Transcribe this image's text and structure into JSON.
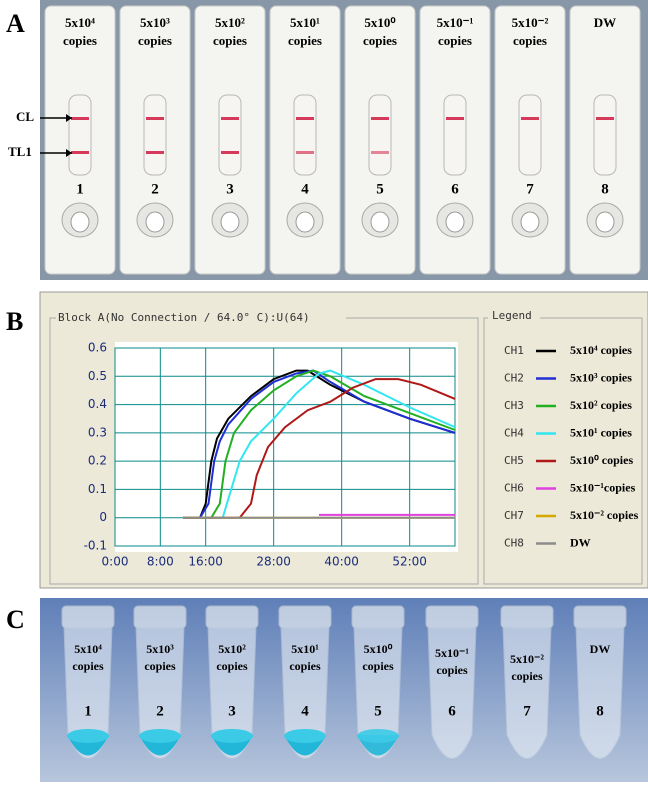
{
  "panel_a": {
    "label": "A",
    "markers": [
      "CL",
      "TL1"
    ],
    "strips": [
      {
        "concentration": "5x10⁴",
        "unit": "copies",
        "number": "1"
      },
      {
        "concentration": "5x10³",
        "unit": "copies",
        "number": "2"
      },
      {
        "concentration": "5x10²",
        "unit": "copies",
        "number": "3"
      },
      {
        "concentration": "5x10¹",
        "unit": "copies",
        "number": "4"
      },
      {
        "concentration": "5x10⁰",
        "unit": "copies",
        "number": "5"
      },
      {
        "concentration": "5x10⁻¹",
        "unit": "copies",
        "number": "6"
      },
      {
        "concentration": "5x10⁻²",
        "unit": "copies",
        "number": "7"
      },
      {
        "concentration": "DW",
        "number": "8"
      }
    ]
  },
  "chart_data": {
    "type": "line",
    "panel_label": "B",
    "title": "Block A(No Connection / 64.0° C):U(64)",
    "legend_title": "Legend",
    "xlim": [
      0,
      60
    ],
    "ylim": [
      -0.1,
      0.6
    ],
    "grid": true,
    "xticks": [
      {
        "value": 0,
        "label": "0:00"
      },
      {
        "value": 8,
        "label": "8:00"
      },
      {
        "value": 16,
        "label": "16:00"
      },
      {
        "value": 28,
        "label": "28:00"
      },
      {
        "value": 40,
        "label": "40:00"
      },
      {
        "value": 52,
        "label": "52:00"
      }
    ],
    "yticks": [
      -0.1,
      0,
      0.1,
      0.2,
      0.3,
      0.4,
      0.5,
      0.6
    ],
    "series": [
      {
        "name": "CH1",
        "description": "5x10⁴ copies",
        "color": "#000000",
        "x": [
          12,
          15,
          16,
          17,
          18,
          20,
          24,
          28,
          32,
          34,
          38,
          44,
          52,
          60
        ],
        "values": [
          0,
          0,
          0.05,
          0.2,
          0.28,
          0.35,
          0.43,
          0.49,
          0.52,
          0.52,
          0.47,
          0.41,
          0.35,
          0.3
        ]
      },
      {
        "name": "CH2",
        "description": "5x10³ copies",
        "color": "#1f2fd6",
        "x": [
          12,
          15,
          16.5,
          17.5,
          18.5,
          20,
          24,
          28,
          32,
          35,
          38,
          44,
          52,
          60
        ],
        "values": [
          0,
          0,
          0.05,
          0.2,
          0.27,
          0.33,
          0.42,
          0.48,
          0.51,
          0.52,
          0.48,
          0.41,
          0.35,
          0.3
        ]
      },
      {
        "name": "CH3",
        "description": "5x10² copies",
        "color": "#22b022",
        "x": [
          12,
          17,
          18.5,
          19.5,
          21,
          24,
          28,
          32,
          35,
          38,
          44,
          52,
          60
        ],
        "values": [
          0,
          0,
          0.05,
          0.2,
          0.3,
          0.38,
          0.45,
          0.5,
          0.52,
          0.5,
          0.43,
          0.37,
          0.31
        ]
      },
      {
        "name": "CH4",
        "description": "5x10¹ copies",
        "color": "#33e6f0",
        "x": [
          12,
          19,
          20.5,
          22,
          24,
          28,
          32,
          36,
          38,
          44,
          52,
          60
        ],
        "values": [
          0,
          0,
          0.1,
          0.2,
          0.27,
          0.35,
          0.44,
          0.51,
          0.52,
          0.47,
          0.39,
          0.32
        ]
      },
      {
        "name": "CH5",
        "description": "5x10⁰ copies",
        "color": "#b01818",
        "x": [
          12,
          22,
          24,
          25,
          27,
          30,
          34,
          38,
          42,
          46,
          50,
          54,
          60
        ],
        "values": [
          0,
          0,
          0.05,
          0.15,
          0.25,
          0.32,
          0.38,
          0.41,
          0.46,
          0.49,
          0.49,
          0.47,
          0.42
        ]
      },
      {
        "name": "CH6",
        "description": "5x10⁻¹copies",
        "color": "#e040e0",
        "x": [
          36,
          60
        ],
        "values": [
          0.01,
          0.01
        ]
      },
      {
        "name": "CH7",
        "description": "5x10⁻² copies",
        "color": "#d4a800",
        "x": [
          12,
          60
        ],
        "values": [
          0,
          0
        ]
      },
      {
        "name": "CH8",
        "description": "DW",
        "color": "#8c8c8c",
        "x": [
          12,
          60
        ],
        "values": [
          0,
          0
        ]
      }
    ]
  },
  "panel_c": {
    "label": "C",
    "tubes": [
      {
        "concentration": "5x10⁴",
        "unit": "copies",
        "number": "1"
      },
      {
        "concentration": "5x10³",
        "unit": "copies",
        "number": "2"
      },
      {
        "concentration": "5x10²",
        "unit": "copies",
        "number": "3"
      },
      {
        "concentration": "5x10¹",
        "unit": "copies",
        "number": "4"
      },
      {
        "concentration": "5x10⁰",
        "unit": "copies",
        "number": "5"
      },
      {
        "concentration": "5x10⁻¹",
        "unit": "copies",
        "number": "6"
      },
      {
        "concentration": "5x10⁻²",
        "unit": "copies",
        "number": "7"
      },
      {
        "concentration": "DW",
        "number": "8"
      }
    ]
  }
}
